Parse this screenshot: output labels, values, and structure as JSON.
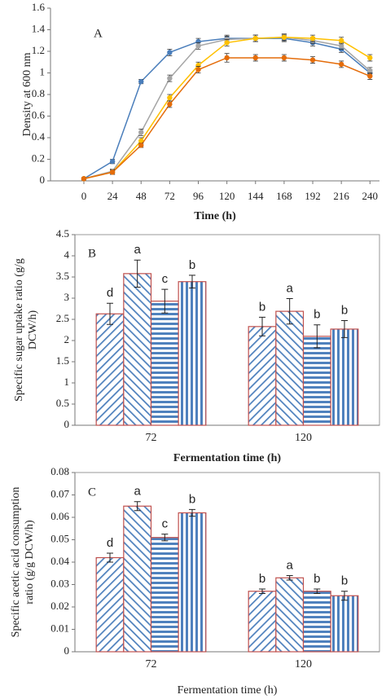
{
  "chart_data": [
    {
      "type": "line",
      "title": "A",
      "x_label": "Time (h)",
      "y_label": "Density at 600 nm",
      "x": [
        0,
        24,
        48,
        72,
        96,
        120,
        144,
        168,
        192,
        216,
        240
      ],
      "xlim": [
        -28,
        248
      ],
      "xticks": [
        0,
        24,
        48,
        72,
        96,
        120,
        144,
        168,
        192,
        216,
        240
      ],
      "ylim": [
        0,
        1.6
      ],
      "yticks": [
        0,
        0.2,
        0.4,
        0.6,
        0.8,
        1,
        1.2,
        1.4,
        1.6
      ],
      "grid": false,
      "series": [
        {
          "color": "#4a7ebb",
          "values": [
            0.02,
            0.18,
            0.92,
            1.19,
            1.29,
            1.32,
            1.32,
            1.32,
            1.28,
            1.22,
            1.0
          ],
          "errors": [
            0.01,
            0.02,
            0.02,
            0.03,
            0.03,
            0.03,
            0.03,
            0.03,
            0.03,
            0.03,
            0.03
          ]
        },
        {
          "color": "#a5a5a5",
          "values": [
            0.02,
            0.09,
            0.45,
            0.95,
            1.25,
            1.31,
            1.32,
            1.33,
            1.3,
            1.25,
            1.02
          ],
          "errors": [
            0.01,
            0.02,
            0.03,
            0.03,
            0.03,
            0.03,
            0.03,
            0.03,
            0.03,
            0.03,
            0.03
          ]
        },
        {
          "color": "#ffc000",
          "values": [
            0.02,
            0.08,
            0.37,
            0.77,
            1.07,
            1.28,
            1.32,
            1.33,
            1.32,
            1.3,
            1.14
          ],
          "errors": [
            0.01,
            0.02,
            0.03,
            0.03,
            0.03,
            0.03,
            0.03,
            0.03,
            0.03,
            0.03,
            0.03
          ]
        },
        {
          "color": "#e46c0a",
          "values": [
            0.02,
            0.08,
            0.33,
            0.71,
            1.03,
            1.14,
            1.14,
            1.14,
            1.12,
            1.08,
            0.97
          ],
          "errors": [
            0.01,
            0.02,
            0.02,
            0.03,
            0.03,
            0.04,
            0.03,
            0.03,
            0.03,
            0.03,
            0.03
          ]
        }
      ]
    },
    {
      "type": "bar",
      "title": "B",
      "x_label": "Fermentation time (h)",
      "y_label": [
        "Specific sugar uptake ratio (g/g",
        "DCW/h)"
      ],
      "categories": [
        "72",
        "120"
      ],
      "ylim": [
        0,
        4.5
      ],
      "yticks": [
        0,
        0.5,
        1,
        1.5,
        2,
        2.5,
        3,
        3.5,
        4,
        4.5
      ],
      "grid": false,
      "series": [
        {
          "color": "#4f81bd",
          "edgecolor": "#c0504d",
          "pattern": "diagonal-down",
          "values": [
            2.63,
            2.33
          ],
          "errors": [
            0.25,
            0.22
          ],
          "annotations": [
            "d",
            "b"
          ]
        },
        {
          "color": "#4f81bd",
          "edgecolor": "#c0504d",
          "pattern": "diagonal-up",
          "values": [
            3.58,
            2.69
          ],
          "errors": [
            0.32,
            0.3
          ],
          "annotations": [
            "a",
            "a"
          ]
        },
        {
          "color": "#4f81bd",
          "edgecolor": "#c0504d",
          "pattern": "horizontal",
          "values": [
            2.93,
            2.1
          ],
          "errors": [
            0.28,
            0.27
          ],
          "annotations": [
            "c",
            "b"
          ]
        },
        {
          "color": "#4f81bd",
          "edgecolor": "#c0504d",
          "pattern": "vertical",
          "values": [
            3.39,
            2.27
          ],
          "errors": [
            0.15,
            0.2
          ],
          "annotations": [
            "b",
            "b"
          ]
        }
      ]
    },
    {
      "type": "bar",
      "title": "C",
      "x_label": "Fermentation time (h)",
      "y_label": [
        "Specific acetic acid consumption",
        "ratio (g/g DCW/h)"
      ],
      "categories": [
        "72",
        "120"
      ],
      "ylim": [
        0,
        0.08
      ],
      "yticks": [
        0,
        0.01,
        0.02,
        0.03,
        0.04,
        0.05,
        0.06,
        0.07,
        0.08
      ],
      "grid": false,
      "series": [
        {
          "color": "#4f81bd",
          "edgecolor": "#c0504d",
          "pattern": "diagonal-down",
          "values": [
            0.042,
            0.027
          ],
          "errors": [
            0.002,
            0.001
          ],
          "annotations": [
            "d",
            "b"
          ]
        },
        {
          "color": "#4f81bd",
          "edgecolor": "#c0504d",
          "pattern": "diagonal-up",
          "values": [
            0.065,
            0.033
          ],
          "errors": [
            0.002,
            0.001
          ],
          "annotations": [
            "a",
            "a"
          ]
        },
        {
          "color": "#4f81bd",
          "edgecolor": "#c0504d",
          "pattern": "horizontal",
          "values": [
            0.051,
            0.027
          ],
          "errors": [
            0.0015,
            0.001
          ],
          "annotations": [
            "c",
            "b"
          ]
        },
        {
          "color": "#4f81bd",
          "edgecolor": "#c0504d",
          "pattern": "vertical",
          "values": [
            0.062,
            0.025
          ],
          "errors": [
            0.0015,
            0.002
          ],
          "annotations": [
            "b",
            "b"
          ]
        }
      ]
    }
  ]
}
